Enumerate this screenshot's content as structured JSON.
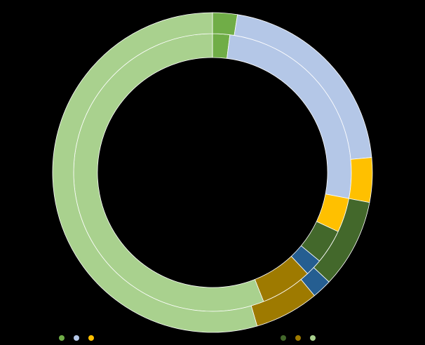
{
  "chart_data": {
    "type": "pie",
    "variant": "double-donut",
    "title": "",
    "rings": [
      {
        "name": "",
        "position": "inner",
        "slices": [
          {
            "name": "",
            "value": 2.0,
            "color": "#70AD47"
          },
          {
            "name": "",
            "value": 26.0,
            "color": "#B4C7E7"
          },
          {
            "name": "",
            "value": 4.0,
            "color": "#FFC000"
          },
          {
            "name": "",
            "value": 4.0,
            "color": "#43682B"
          },
          {
            "name": "",
            "value": 2.0,
            "color": "#255E91"
          },
          {
            "name": "",
            "value": 6.0,
            "color": "#9E7A00"
          },
          {
            "name": "",
            "value": 56.0,
            "color": "#A9D18E"
          }
        ]
      },
      {
        "name": "",
        "position": "outer",
        "slices": [
          {
            "name": "",
            "value": 2.5,
            "color": "#70AD47"
          },
          {
            "name": "",
            "value": 21.0,
            "color": "#B4C7E7"
          },
          {
            "name": "",
            "value": 4.5,
            "color": "#FFC000"
          },
          {
            "name": "",
            "value": 9.0,
            "color": "#43682B"
          },
          {
            "name": "",
            "value": 2.0,
            "color": "#255E91"
          },
          {
            "name": "",
            "value": 6.5,
            "color": "#9E7A00"
          },
          {
            "name": "",
            "value": 54.5,
            "color": "#A9D18E"
          }
        ]
      }
    ],
    "legend_position": "bottom",
    "legend": [
      {
        "label": "",
        "color": "#70AD47"
      },
      {
        "label": "",
        "color": "#B4C7E7"
      },
      {
        "label": "",
        "color": "#FFC000"
      },
      {
        "label": "",
        "color": "#43682B"
      },
      {
        "label": "",
        "color": "#9E7A00"
      },
      {
        "label": "",
        "color": "#A9D18E"
      }
    ]
  }
}
